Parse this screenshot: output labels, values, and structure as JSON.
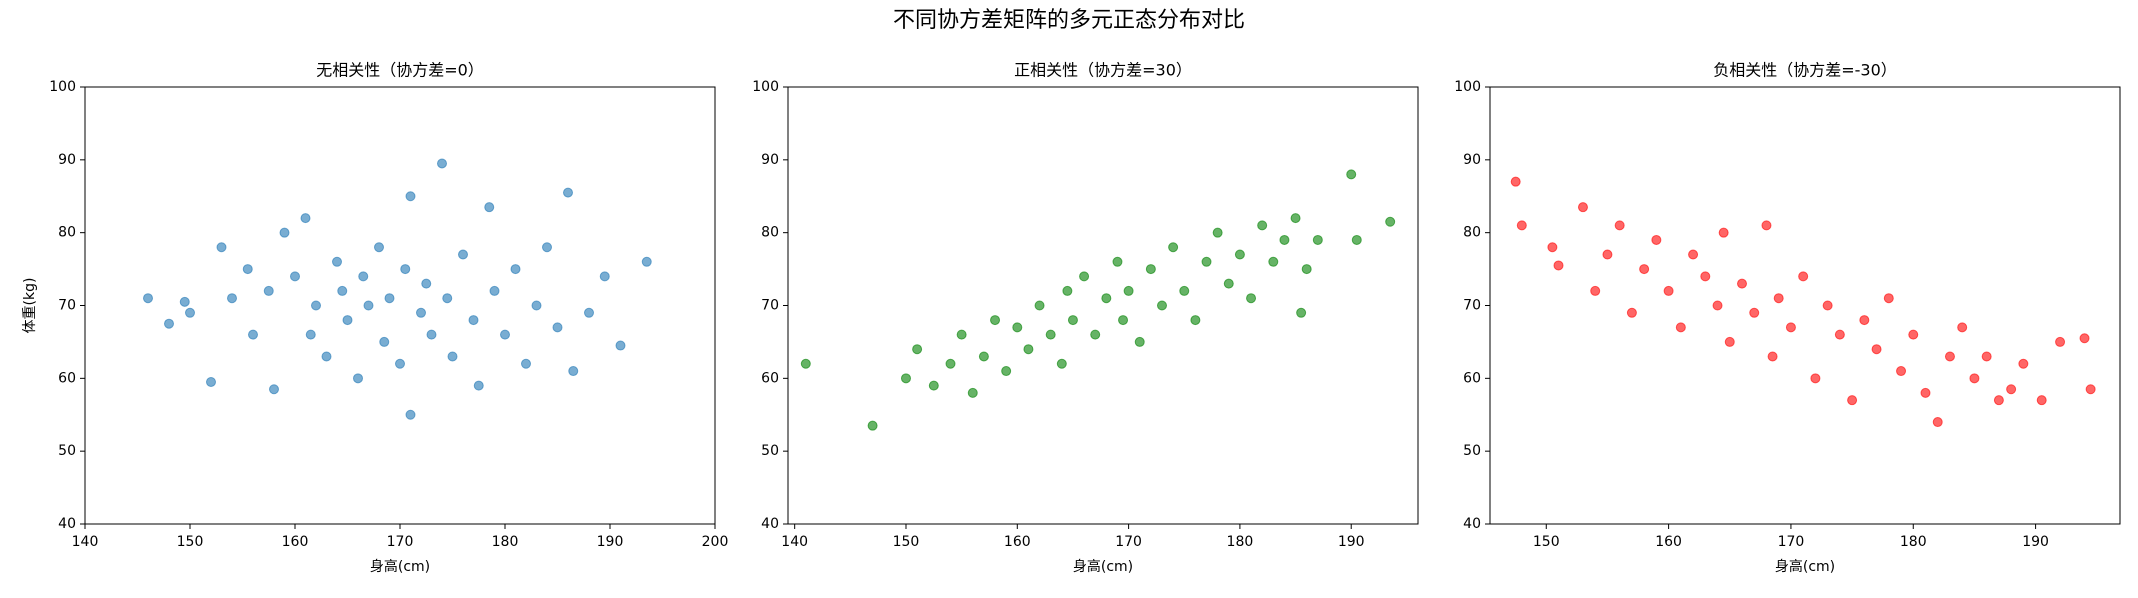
{
  "title": "不同协方差矩阵的多元正态分布对比",
  "chart_data": [
    {
      "type": "scatter",
      "title": "无相关性（协方差=0）",
      "xlabel": "身高(cm)",
      "ylabel": "体重(kg)",
      "color": "#1f77b4",
      "xlim": [
        140,
        200
      ],
      "xticks": [
        140,
        150,
        160,
        170,
        180,
        190,
        200
      ],
      "ylim": [
        40,
        100
      ],
      "yticks": [
        40,
        50,
        60,
        70,
        80,
        90,
        100
      ],
      "x": [
        146,
        148,
        149.5,
        150,
        152,
        153,
        154,
        155.5,
        156,
        157.5,
        158,
        159,
        160,
        161,
        161.5,
        162,
        163,
        164,
        164.5,
        165,
        166,
        166.5,
        167,
        168,
        168.5,
        169,
        170,
        170.5,
        171,
        171,
        172,
        172.5,
        173,
        174,
        174.5,
        175,
        176,
        177,
        177.5,
        178.5,
        179,
        180,
        181,
        182,
        183,
        184,
        185,
        186,
        186.5,
        188,
        189.5,
        191,
        193.5
      ],
      "values": [
        71,
        67.5,
        70.5,
        69,
        59.5,
        78,
        71,
        75,
        66,
        72,
        58.5,
        80,
        74,
        82,
        66,
        70,
        63,
        76,
        72,
        68,
        60,
        74,
        70,
        78,
        65,
        71,
        62,
        75,
        85,
        55,
        69,
        73,
        66,
        89.5,
        71,
        63,
        77,
        68,
        59,
        83.5,
        72,
        66,
        75,
        62,
        70,
        78,
        67,
        85.5,
        61,
        69,
        74,
        64.5,
        76
      ]
    },
    {
      "type": "scatter",
      "title": "正相关性（协方差=30）",
      "xlabel": "身高(cm)",
      "color": "#008000",
      "xlim": [
        139.4,
        196
      ],
      "xticks": [
        140,
        150,
        160,
        170,
        180,
        190
      ],
      "ylim": [
        40,
        100
      ],
      "yticks": [
        40,
        50,
        60,
        70,
        80,
        90,
        100
      ],
      "x": [
        141,
        147,
        150,
        151,
        152.5,
        154,
        155,
        156,
        157,
        158,
        159,
        160,
        161,
        162,
        163,
        164,
        164.5,
        165,
        166,
        167,
        168,
        169,
        169.5,
        170,
        171,
        172,
        173,
        174,
        175,
        176,
        177,
        178,
        179,
        180,
        181,
        182,
        183,
        184,
        185,
        185.5,
        186,
        187,
        190,
        190.5,
        193.5
      ],
      "values": [
        62,
        53.5,
        60,
        64,
        59,
        62,
        66,
        58,
        63,
        68,
        61,
        67,
        64,
        70,
        66,
        62,
        72,
        68,
        74,
        66,
        71,
        76,
        68,
        72,
        65,
        75,
        70,
        78,
        72,
        68,
        76,
        80,
        73,
        77,
        71,
        81,
        76,
        79,
        82,
        69,
        75,
        79,
        88,
        79,
        81.5
      ]
    },
    {
      "type": "scatter",
      "title": "负相关性（协方差=-30）",
      "xlabel": "身高(cm)",
      "color": "#ff0000",
      "xlim": [
        145.4,
        196.9
      ],
      "xticks": [
        150,
        160,
        170,
        180,
        190
      ],
      "ylim": [
        40,
        100
      ],
      "yticks": [
        40,
        50,
        60,
        70,
        80,
        90,
        100
      ],
      "x": [
        147.5,
        148,
        150.5,
        151,
        153,
        154,
        155,
        156,
        157,
        158,
        159,
        160,
        161,
        162,
        163,
        164,
        164.5,
        165,
        166,
        167,
        168,
        168.5,
        169,
        170,
        171,
        172,
        173,
        174,
        175,
        176,
        177,
        178,
        179,
        180,
        181,
        182,
        183,
        184,
        185,
        186,
        187,
        188,
        189,
        190.5,
        192,
        194,
        194.5
      ],
      "values": [
        87,
        81,
        78,
        75.5,
        83.5,
        72,
        77,
        81,
        69,
        75,
        79,
        72,
        67,
        77,
        74,
        70,
        80,
        65,
        73,
        69,
        81,
        63,
        71,
        67,
        74,
        60,
        70,
        66,
        57,
        68,
        64,
        71,
        61,
        66,
        58,
        54,
        63,
        67,
        60,
        63,
        57,
        58.5,
        62,
        57,
        65,
        65.5,
        58.5
      ]
    }
  ]
}
